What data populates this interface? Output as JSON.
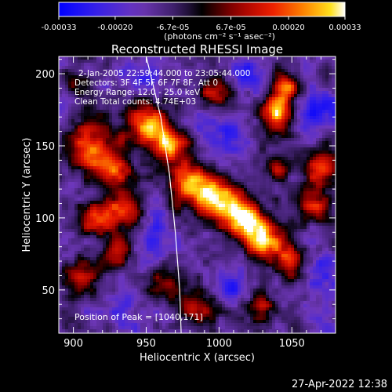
{
  "chart_data": {
    "type": "heatmap",
    "title": "Reconstructed RHESSI Image",
    "xlabel": "Heliocentric X (arcsec)",
    "ylabel": "Heliocentric Y (arcsec)",
    "xlim": [
      890,
      1080
    ],
    "ylim": [
      20,
      212
    ],
    "xticks": [
      900,
      950,
      1000,
      1050
    ],
    "yticks": [
      50,
      100,
      150,
      200
    ],
    "grid": false,
    "colorbar": {
      "position": "top",
      "range": [
        -0.00033,
        0.00033
      ],
      "tick_values": [
        -0.00033,
        -0.0002,
        -6.7e-05,
        6.7e-05,
        0.0002,
        0.00033
      ],
      "tick_labels": [
        "-0.00033",
        "-0.00020",
        "-6.7e-05",
        "6.7e-05",
        "0.00020",
        "0.00033"
      ],
      "units_label": "(photons cm⁻² s⁻¹ asec⁻²)"
    },
    "annotations": [
      "2-Jan-2005 22:59:44.000 to 23:05:44.000",
      "Detectors: 3F 4F 5F 6F 7F 8F, Att 0",
      "Energy Range: 12.0 - 25.0 keV",
      "Clean     Total counts: 4.74E+03"
    ],
    "peak_label": "Position of Peak = [1040,171]",
    "peak": {
      "x": 1040,
      "y": 171
    },
    "limb_curve": {
      "points": [
        [
          950,
          212
        ],
        [
          960,
          170
        ],
        [
          966,
          130
        ],
        [
          970,
          90
        ],
        [
          973,
          50
        ],
        [
          974,
          20
        ]
      ]
    },
    "sources": [
      {
        "x": 950,
        "y": 165,
        "s": 10,
        "a": 0.8
      },
      {
        "x": 965,
        "y": 150,
        "s": 9,
        "a": 0.9
      },
      {
        "x": 980,
        "y": 125,
        "s": 10,
        "a": 0.95
      },
      {
        "x": 1000,
        "y": 112,
        "s": 11,
        "a": 1.0
      },
      {
        "x": 1018,
        "y": 100,
        "s": 9,
        "a": 0.9
      },
      {
        "x": 1030,
        "y": 85,
        "s": 9,
        "a": 0.85
      },
      {
        "x": 1048,
        "y": 70,
        "s": 8,
        "a": 0.7
      },
      {
        "x": 1040,
        "y": 171,
        "s": 8,
        "a": 1.0
      },
      {
        "x": 1045,
        "y": 190,
        "s": 7,
        "a": 0.8
      },
      {
        "x": 910,
        "y": 150,
        "s": 12,
        "a": 0.7
      },
      {
        "x": 925,
        "y": 135,
        "s": 9,
        "a": 0.75
      },
      {
        "x": 935,
        "y": 105,
        "s": 10,
        "a": 0.75
      },
      {
        "x": 915,
        "y": 100,
        "s": 8,
        "a": 0.6
      },
      {
        "x": 905,
        "y": 60,
        "s": 10,
        "a": 0.45
      },
      {
        "x": 930,
        "y": 75,
        "s": 8,
        "a": 0.5
      },
      {
        "x": 960,
        "y": 55,
        "s": 8,
        "a": 0.45
      },
      {
        "x": 1070,
        "y": 135,
        "s": 8,
        "a": 0.65
      },
      {
        "x": 1065,
        "y": 108,
        "s": 8,
        "a": 0.55
      },
      {
        "x": 995,
        "y": 185,
        "s": 8,
        "a": 0.55
      },
      {
        "x": 1040,
        "y": 135,
        "s": 6,
        "a": 0.5
      },
      {
        "x": 985,
        "y": 40,
        "s": 9,
        "a": 0.5
      },
      {
        "x": 1030,
        "y": 40,
        "s": 8,
        "a": 0.45
      },
      {
        "x": 900,
        "y": 195,
        "s": 7,
        "a": 0.4
      }
    ],
    "holes": [
      {
        "x": 1000,
        "y": 160,
        "s": 12,
        "a": 0.5
      },
      {
        "x": 1020,
        "y": 200,
        "s": 9,
        "a": 0.45
      },
      {
        "x": 1068,
        "y": 175,
        "s": 10,
        "a": 0.45
      },
      {
        "x": 950,
        "y": 90,
        "s": 10,
        "a": 0.4
      },
      {
        "x": 1010,
        "y": 55,
        "s": 9,
        "a": 0.45
      },
      {
        "x": 1070,
        "y": 60,
        "s": 10,
        "a": 0.5
      },
      {
        "x": 945,
        "y": 200,
        "s": 8,
        "a": 0.4
      },
      {
        "x": 935,
        "y": 35,
        "s": 8,
        "a": 0.35
      }
    ]
  },
  "timestamp": "27-Apr-2022 12:38"
}
